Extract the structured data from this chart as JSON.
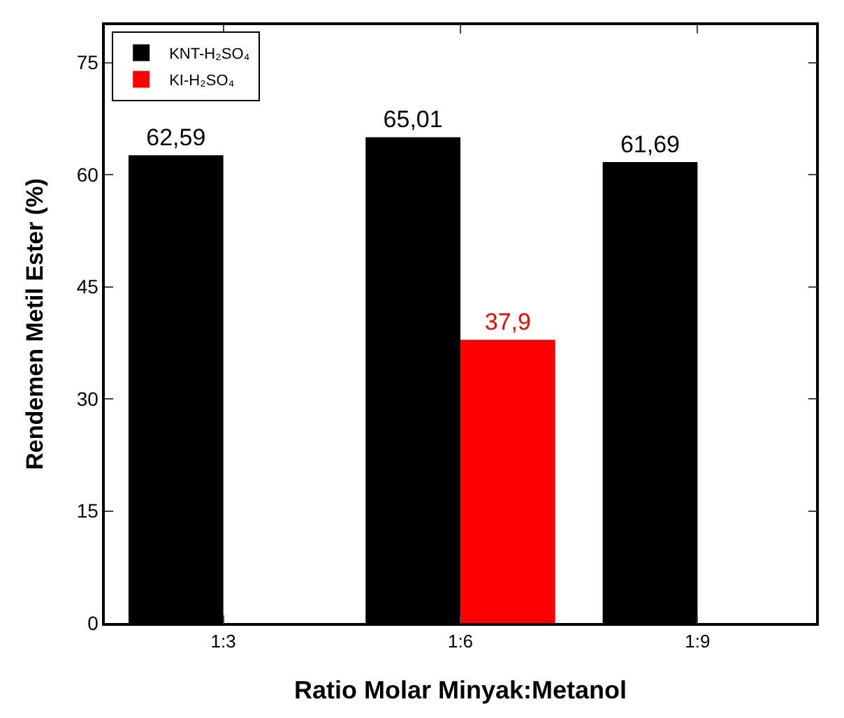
{
  "chart_data": {
    "type": "bar",
    "xlabel": "Ratio Molar Minyak:Metanol",
    "ylabel": "Rendemen Metil Ester (%)",
    "categories": [
      "1:3",
      "1:6",
      "1:9"
    ],
    "series": [
      {
        "name": "KNT-H₂SO₄",
        "color": "#000000",
        "values": [
          62.59,
          65.01,
          61.69
        ],
        "value_labels": [
          "62,59",
          "65,01",
          "61,69"
        ]
      },
      {
        "name": "KI-H₂SO₄",
        "color": "#ff0000",
        "values": [
          null,
          37.9,
          null
        ],
        "value_labels": [
          null,
          "37,9",
          null
        ]
      }
    ],
    "ylim": [
      0,
      80
    ],
    "yticks": [
      0,
      15,
      30,
      45,
      60,
      75
    ],
    "grid": false,
    "legend": "top left"
  }
}
